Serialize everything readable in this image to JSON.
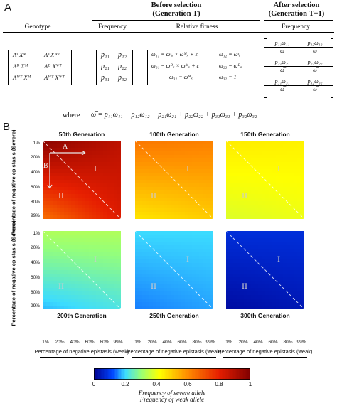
{
  "panel_a": {
    "letter": "A",
    "header_before_1": "Before selection",
    "header_before_2": "(Generation T)",
    "header_after_1": "After selection",
    "header_after_2": "(Generation T+1)",
    "col_genotype": "Genotype",
    "col_frequency": "Frequency",
    "col_fitness": "Relative fitness",
    "col_frequency_after": "Frequency",
    "genotype_rows": [
      [
        "Aˢ Xᴹ",
        "Aˢ Xᵂᵀ"
      ],
      [
        "Aᴰ Xᴹ",
        "Aᴰ Xᵂᵀ"
      ],
      [
        "Aᵂᵀ Xᴹ",
        "Aᵂᵀ Xᵂᵀ"
      ]
    ],
    "frequency_rows": [
      [
        "p₁₁",
        "p₁₂"
      ],
      [
        "p₂₁",
        "p₂₂"
      ],
      [
        "p₃₁",
        "p₃₂"
      ]
    ],
    "fitness_rows": [
      [
        "ω₁₁ = ωˢₐ × ωᴹₓ + ε",
        "ω₁₂ = ωˢₐ"
      ],
      [
        "ω₂₁ = ωᴰₐ × ωᴹₓ + ε",
        "ω₂₂ = ωᴰₐ"
      ],
      [
        "ω₃₁ = ωᴹₓ",
        "ω₃₂ = 1"
      ]
    ],
    "after_rows": [
      [
        {
          "num": "p₁₁ω₁₁",
          "den": "ω̅"
        },
        {
          "num": "p₁₂ω₁₂",
          "den": "ω̅"
        }
      ],
      [
        {
          "num": "p₂₁ω₂₁",
          "den": "ω̅"
        },
        {
          "num": "p₂₂ω₂₂",
          "den": "ω̅"
        }
      ],
      [
        {
          "num": "p₃₁ω₃₁",
          "den": "ω̅"
        },
        {
          "num": "p₃₂ω₃₂",
          "den": "ω̅"
        }
      ]
    ],
    "where_label": "where",
    "where_formula": "ω̅ = p₁₁ω₁₁ + p₁₂ω₁₂ + p₂₁ω₂₁ + p₂₂ω₂₂ + p₃₁ω₃₁ + p₃₂ω₃₂"
  },
  "panel_b": {
    "letter": "B",
    "ylabel": "Percentage of negative epistasis (Severe)",
    "xlabel": "Percentage of negative epistasis (weak)",
    "ticks": [
      "1%",
      "20%",
      "40%",
      "60%",
      "80%",
      "99%"
    ],
    "region_labels": [
      "I",
      "II"
    ],
    "arrow_labels": [
      "A",
      "B"
    ],
    "colorbar": {
      "ticks": [
        "0",
        "0.2",
        "0.4",
        "0.6",
        "0.8",
        "1"
      ],
      "label_num": "Frequency of severe allele",
      "label_den": "Frequency of weak allele"
    }
  },
  "chart_data": {
    "type": "heatmap",
    "xlabel": "Percentage of negative epistasis (weak)",
    "ylabel": "Percentage of negative epistasis (Severe)",
    "x_ticks": [
      "1%",
      "20%",
      "40%",
      "60%",
      "80%",
      "99%"
    ],
    "y_ticks": [
      "1%",
      "20%",
      "40%",
      "60%",
      "80%",
      "99%"
    ],
    "color_range": [
      0,
      1
    ],
    "panels": [
      {
        "generation": "50",
        "title": "50th Generation",
        "corners": {
          "top_left": 0.98,
          "top_right": 0.88,
          "bottom_left": 0.65,
          "bottom_right": 0.82
        }
      },
      {
        "generation": "100",
        "title": "100th Generation",
        "corners": {
          "top_left": 0.64,
          "top_right": 0.62,
          "bottom_left": 0.46,
          "bottom_right": 0.5
        }
      },
      {
        "generation": "150",
        "title": "150th Generation",
        "corners": {
          "top_left": 0.45,
          "top_right": 0.44,
          "bottom_left": 0.38,
          "bottom_right": 0.4
        }
      },
      {
        "generation": "200",
        "title": "200th Generation",
        "corners": {
          "top_left": 0.33,
          "top_right": 0.33,
          "bottom_left": 0.18,
          "bottom_right": 0.22
        }
      },
      {
        "generation": "250",
        "title": "250th Generation",
        "corners": {
          "top_left": 0.2,
          "top_right": 0.2,
          "bottom_left": 0.15,
          "bottom_right": 0.17
        }
      },
      {
        "generation": "300",
        "title": "300th Generation",
        "corners": {
          "top_left": 0.08,
          "top_right": 0.08,
          "bottom_left": 0.02,
          "bottom_right": 0.04
        }
      }
    ]
  }
}
